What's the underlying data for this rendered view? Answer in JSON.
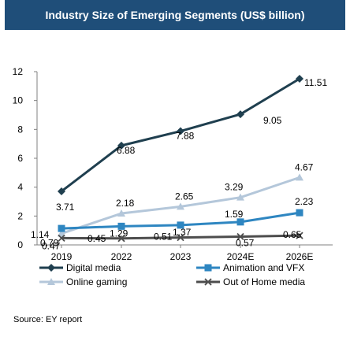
{
  "source_note": "Source: EY report",
  "chart_data": {
    "type": "line",
    "title": "Industry Size of Emerging Segments (US$ billion)",
    "categories": [
      "2019",
      "2022",
      "2023",
      "2024E",
      "2026E"
    ],
    "ylim": [
      0,
      12
    ],
    "yticks": [
      0,
      2,
      4,
      6,
      8,
      10,
      12
    ],
    "grid": false,
    "legend_position": "bottom",
    "series": [
      {
        "name": "Digital media",
        "values": [
          3.71,
          6.88,
          7.88,
          9.05,
          11.51
        ],
        "color": "#1f3f4f",
        "marker": "diamond"
      },
      {
        "name": "Animation and VFX",
        "values": [
          1.14,
          1.29,
          1.37,
          1.59,
          2.23
        ],
        "color": "#2e86c1",
        "marker": "square"
      },
      {
        "name": "Online gaming",
        "values": [
          0.79,
          2.18,
          2.65,
          3.29,
          4.67
        ],
        "color": "#b4c7da",
        "marker": "triangle"
      },
      {
        "name": "Out of Home media",
        "values": [
          0.47,
          0.45,
          0.51,
          0.57,
          0.65
        ],
        "color": "#4d4d4d",
        "marker": "x"
      }
    ],
    "data_labels": [
      [
        "3.71",
        "6.88",
        "7.88",
        "9.05",
        "11.51"
      ],
      [
        "1.14",
        "1.29",
        "1.37",
        "1.59",
        "2.23"
      ],
      [
        "0.79",
        "2.18",
        "2.65",
        "3.29",
        "4.67"
      ],
      [
        "0.47",
        "0.45",
        "0.51",
        "0.57",
        "0.65"
      ]
    ]
  }
}
